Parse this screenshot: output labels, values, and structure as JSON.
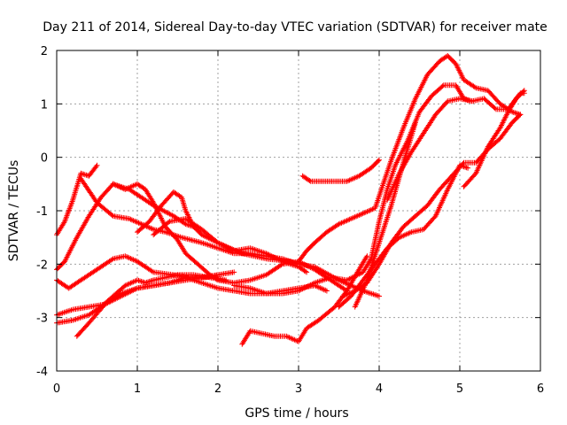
{
  "chart_data": {
    "type": "scatter",
    "title": "Day 211 of 2014, Sidereal Day-to-day VTEC variation (SDTVAR) for receiver mate",
    "xlabel": "GPS time / hours",
    "ylabel": "SDTVAR / TECUs",
    "xlim": [
      0,
      6
    ],
    "ylim": [
      -4,
      2
    ],
    "xticks": [
      0,
      1,
      2,
      3,
      4,
      5,
      6
    ],
    "yticks": [
      -4,
      -3,
      -2,
      -1,
      0,
      1,
      2
    ],
    "grid": true,
    "marker": "+",
    "color": "#ff0000",
    "series": [
      {
        "x": [
          0.0,
          0.1,
          0.2,
          0.3,
          0.4,
          0.5
        ],
        "y": [
          -1.45,
          -1.2,
          -0.8,
          -0.3,
          -0.35,
          -0.15
        ]
      },
      {
        "x": [
          0.0,
          0.1,
          0.25,
          0.4,
          0.55,
          0.7,
          0.9,
          1.2,
          1.45,
          1.6,
          1.7,
          1.8,
          2.0,
          2.3,
          2.6,
          2.9,
          3.0
        ],
        "y": [
          -2.1,
          -1.95,
          -1.5,
          -1.1,
          -0.75,
          -0.5,
          -0.6,
          -0.9,
          -1.1,
          -1.25,
          -1.3,
          -1.45,
          -1.6,
          -1.8,
          -1.9,
          -1.95,
          -2.0
        ]
      },
      {
        "x": [
          0.0,
          0.15,
          0.3,
          0.5,
          0.7,
          0.85,
          1.0,
          1.2,
          1.45,
          1.65,
          1.85,
          2.0,
          2.2
        ],
        "y": [
          -2.3,
          -2.45,
          -2.3,
          -2.1,
          -1.9,
          -1.85,
          -1.95,
          -2.15,
          -2.2,
          -2.25,
          -2.25,
          -2.2,
          -2.15
        ]
      },
      {
        "x": [
          0.0,
          0.2,
          0.4,
          0.6,
          0.8,
          1.0,
          1.2,
          1.4,
          1.6,
          1.8,
          2.0,
          2.2,
          2.4,
          2.6,
          2.8,
          3.0,
          3.2,
          3.35
        ],
        "y": [
          -2.95,
          -2.85,
          -2.8,
          -2.75,
          -2.6,
          -2.45,
          -2.4,
          -2.35,
          -2.25,
          -2.35,
          -2.45,
          -2.5,
          -2.55,
          -2.55,
          -2.5,
          -2.45,
          -2.4,
          -2.5
        ]
      },
      {
        "x": [
          0.0,
          0.2,
          0.4,
          0.55,
          0.7,
          0.85,
          1.0,
          1.1,
          1.2,
          1.35,
          1.5,
          1.7,
          1.9,
          2.1
        ],
        "y": [
          -3.1,
          -3.05,
          -2.95,
          -2.8,
          -2.6,
          -2.4,
          -2.3,
          -2.35,
          -2.3,
          -2.25,
          -2.2,
          -2.2,
          -2.25,
          -2.3
        ]
      },
      {
        "x": [
          0.25,
          0.4,
          0.6,
          0.8,
          1.0,
          1.2,
          1.4,
          1.6,
          1.8,
          2.0
        ],
        "y": [
          -3.35,
          -3.1,
          -2.75,
          -2.55,
          -2.45,
          -2.4,
          -2.35,
          -2.3,
          -2.25,
          -2.2
        ]
      },
      {
        "x": [
          0.3,
          0.5,
          0.7,
          0.9,
          1.05,
          1.2,
          1.35,
          1.55,
          1.8,
          2.0,
          2.2,
          2.4,
          2.6,
          2.8,
          3.0,
          3.2,
          3.5,
          3.8,
          4.0
        ],
        "y": [
          -0.4,
          -0.85,
          -1.1,
          -1.15,
          -1.25,
          -1.35,
          -1.4,
          -1.5,
          -1.6,
          -1.7,
          -1.8,
          -1.8,
          -1.85,
          -1.9,
          -2.0,
          -2.05,
          -2.3,
          -2.5,
          -2.6
        ]
      },
      {
        "x": [
          0.7,
          0.85,
          1.0,
          1.1,
          1.2,
          1.35,
          1.5,
          1.6,
          1.75,
          1.9,
          2.0,
          2.2,
          2.4,
          2.6,
          2.8,
          3.0,
          3.2,
          3.4,
          3.6
        ],
        "y": [
          -0.5,
          -0.6,
          -0.5,
          -0.6,
          -0.85,
          -1.3,
          -1.55,
          -1.8,
          -2.0,
          -2.2,
          -2.3,
          -2.35,
          -2.3,
          -2.2,
          -2.0,
          -1.95,
          -2.1,
          -2.3,
          -2.5
        ]
      },
      {
        "x": [
          1.0,
          1.15,
          1.3,
          1.45,
          1.55,
          1.6,
          1.7
        ],
        "y": [
          -1.4,
          -1.2,
          -0.9,
          -0.65,
          -0.75,
          -1.0,
          -1.3
        ]
      },
      {
        "x": [
          1.2,
          1.4,
          1.6,
          1.8,
          2.0,
          2.2,
          2.4,
          2.6,
          2.8,
          3.0,
          3.1
        ],
        "y": [
          -1.45,
          -1.2,
          -1.15,
          -1.35,
          -1.6,
          -1.75,
          -1.7,
          -1.8,
          -1.95,
          -2.05,
          -2.15
        ]
      },
      {
        "x": [
          2.3,
          2.4,
          2.55,
          2.7,
          2.85,
          3.0,
          3.1,
          3.25,
          3.45,
          3.6,
          3.75,
          3.85
        ],
        "y": [
          -3.5,
          -3.25,
          -3.3,
          -3.35,
          -3.35,
          -3.45,
          -3.2,
          -3.05,
          -2.8,
          -2.5,
          -2.1,
          -1.85
        ]
      },
      {
        "x": [
          2.2,
          2.4,
          2.6,
          2.8,
          3.0,
          3.2,
          3.4,
          3.6,
          3.8,
          3.9,
          4.0,
          4.1,
          4.2,
          4.35,
          4.5,
          4.65,
          4.8,
          4.95,
          5.05,
          5.15
        ],
        "y": [
          -2.4,
          -2.45,
          -2.55,
          -2.55,
          -2.5,
          -2.35,
          -2.25,
          -2.3,
          -2.15,
          -1.9,
          -1.2,
          -0.6,
          -0.15,
          0.3,
          0.85,
          1.15,
          1.35,
          1.35,
          1.1,
          1.05
        ]
      },
      {
        "x": [
          3.0,
          3.1,
          3.2,
          3.35,
          3.5,
          3.65,
          3.8,
          3.95,
          4.05,
          4.15,
          4.3,
          4.45,
          4.6,
          4.75,
          4.85,
          4.95,
          5.05,
          5.2,
          5.35,
          5.5,
          5.65,
          5.75
        ],
        "y": [
          -1.95,
          -1.75,
          -1.6,
          -1.4,
          -1.25,
          -1.15,
          -1.05,
          -0.95,
          -0.5,
          -0.05,
          0.55,
          1.1,
          1.55,
          1.8,
          1.9,
          1.75,
          1.45,
          1.3,
          1.25,
          1.0,
          0.85,
          0.8
        ]
      },
      {
        "x": [
          3.05,
          3.15,
          3.3,
          3.45,
          3.6,
          3.75,
          3.9,
          4.0
        ],
        "y": [
          -0.35,
          -0.45,
          -0.45,
          -0.45,
          -0.45,
          -0.35,
          -0.2,
          -0.05
        ]
      },
      {
        "x": [
          3.5,
          3.65,
          3.8,
          3.95,
          4.1,
          4.25,
          4.4,
          4.55,
          4.7,
          4.85,
          5.0,
          5.1
        ],
        "y": [
          -2.8,
          -2.6,
          -2.3,
          -2.0,
          -1.7,
          -1.5,
          -1.4,
          -1.35,
          -1.1,
          -0.6,
          -0.15,
          -0.2
        ]
      },
      {
        "x": [
          3.55,
          3.7,
          3.85,
          4.0,
          4.15,
          4.3,
          4.45,
          4.6,
          4.75,
          4.9,
          5.05,
          5.2,
          5.35,
          5.5,
          5.65,
          5.75
        ],
        "y": [
          -2.6,
          -2.5,
          -2.35,
          -2.0,
          -1.6,
          -1.3,
          -1.1,
          -0.9,
          -0.6,
          -0.35,
          -0.1,
          -0.1,
          0.15,
          0.35,
          0.65,
          0.8
        ]
      },
      {
        "x": [
          3.7,
          3.85,
          4.0,
          4.15,
          4.3,
          4.45
        ],
        "y": [
          -2.8,
          -2.3,
          -1.6,
          -0.9,
          -0.1,
          0.65
        ]
      },
      {
        "x": [
          4.1,
          4.25,
          4.4,
          4.55,
          4.7,
          4.85,
          5.0,
          5.15,
          5.3,
          5.45,
          5.6,
          5.75,
          5.8
        ],
        "y": [
          -0.8,
          -0.3,
          0.1,
          0.45,
          0.8,
          1.05,
          1.1,
          1.05,
          1.1,
          0.9,
          0.9,
          1.2,
          1.2
        ]
      },
      {
        "x": [
          5.05,
          5.2,
          5.35,
          5.5,
          5.6,
          5.7,
          5.8
        ],
        "y": [
          -0.55,
          -0.3,
          0.2,
          0.55,
          0.85,
          1.1,
          1.25
        ]
      }
    ]
  }
}
